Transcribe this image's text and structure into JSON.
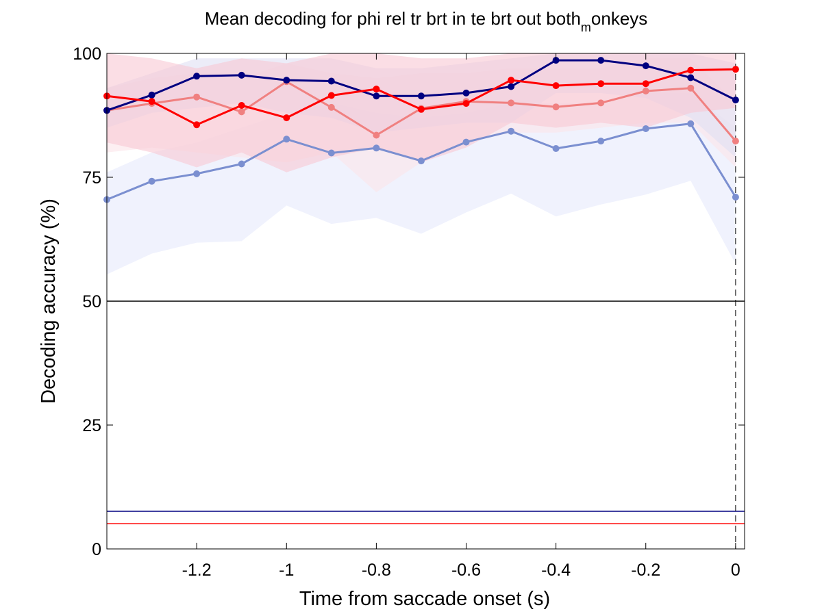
{
  "chart_data": {
    "type": "line",
    "title": "Mean decoding for phi rel tr brt in te brt out  both",
    "title_subscript": "m",
    "title_suffix": "onkeys",
    "xlabel": "Time from saccade onset (s)",
    "ylabel": "Decoding accuracy (%)",
    "xlim": [
      -1.4,
      0.02
    ],
    "ylim": [
      0,
      100
    ],
    "xticks": [
      -1.2,
      -1,
      -0.8,
      -0.6,
      -0.4,
      -0.2,
      0
    ],
    "xtick_labels": [
      "-1.2",
      "-1",
      "-0.8",
      "-0.6",
      "-0.4",
      "-0.2",
      "0"
    ],
    "yticks": [
      0,
      25,
      50,
      75,
      100
    ],
    "ytick_labels": [
      "0",
      "25",
      "50",
      "75",
      "100"
    ],
    "grid": false,
    "legend": "none",
    "x": [
      -1.4,
      -1.3,
      -1.2,
      -1.1,
      -1.0,
      -0.9,
      -0.8,
      -0.7,
      -0.6,
      -0.5,
      -0.4,
      -0.3,
      -0.2,
      -0.1,
      0.0
    ],
    "series": [
      {
        "color": "#7b8fd0",
        "band_color": "#e6e9fb",
        "values": [
          70.5,
          74.2,
          75.7,
          77.7,
          82.7,
          79.9,
          80.9,
          78.3,
          82.1,
          84.3,
          80.8,
          82.3,
          84.8,
          85.8,
          71.0
        ],
        "lower": [
          55.4,
          59.6,
          61.8,
          62.1,
          69.3,
          65.6,
          66.8,
          63.6,
          67.9,
          71.7,
          67.1,
          69.5,
          71.5,
          74.3,
          57.5
        ],
        "upper": [
          76.0,
          80.0,
          82.0,
          85.0,
          88.0,
          90.0,
          88.0,
          87.0,
          88.0,
          90.0,
          90.0,
          90.0,
          92.0,
          92.0,
          85.0
        ]
      },
      {
        "color": "#f08080",
        "band_color": "#fbe4ea",
        "values": [
          88.5,
          89.9,
          91.2,
          88.2,
          94.3,
          89.1,
          83.5,
          88.9,
          90.3,
          90.0,
          89.2,
          90.0,
          92.4,
          93.0,
          82.3
        ],
        "lower": [
          80.0,
          81.0,
          80.0,
          79.0,
          78.0,
          80.0,
          72.0,
          78.0,
          82.0,
          84.0,
          84.0,
          85.0,
          86.0,
          86.0,
          77.0
        ],
        "upper": [
          93.0,
          95.0,
          96.0,
          95.0,
          98.0,
          96.0,
          95.0,
          96.0,
          96.0,
          97.0,
          97.0,
          97.0,
          99.0,
          99.0,
          90.0
        ]
      },
      {
        "color": "#000080",
        "band_color": "#dfe0f3",
        "values": [
          88.5,
          91.6,
          95.4,
          95.6,
          94.6,
          94.4,
          91.4,
          91.4,
          92.0,
          93.3,
          98.6,
          98.6,
          97.5,
          95.1,
          90.6
        ],
        "lower": [
          85.0,
          88.0,
          89.0,
          90.0,
          88.0,
          87.0,
          84.0,
          85.0,
          86.0,
          86.0,
          92.0,
          92.0,
          91.0,
          87.0,
          79.0
        ],
        "upper": [
          93.0,
          96.0,
          99.0,
          99.0,
          99.0,
          99.0,
          97.0,
          97.0,
          98.0,
          99.0,
          100.0,
          100.0,
          100.0,
          100.0,
          98.0
        ]
      },
      {
        "color": "#ff0000",
        "band_color": "#f9c8d4",
        "values": [
          91.4,
          90.3,
          85.6,
          89.5,
          87.0,
          91.5,
          92.8,
          88.7,
          89.9,
          94.6,
          93.5,
          93.9,
          93.9,
          96.6,
          96.8
        ],
        "lower": [
          82.0,
          80.0,
          77.0,
          80.0,
          76.0,
          79.0,
          81.0,
          78.0,
          81.0,
          86.0,
          85.0,
          86.0,
          85.0,
          88.0,
          89.0
        ],
        "upper": [
          100.0,
          99.0,
          97.0,
          99.0,
          98.0,
          100.0,
          100.0,
          99.0,
          99.0,
          100.0,
          100.0,
          100.0,
          100.0,
          100.0,
          100.0
        ]
      }
    ],
    "reference_lines": [
      {
        "axis": "y",
        "value": 50,
        "color": "#000000",
        "style": "solid"
      },
      {
        "axis": "y",
        "value": 7.6,
        "color": "#000080",
        "style": "solid"
      },
      {
        "axis": "y",
        "value": 5.1,
        "color": "#ff0000",
        "style": "solid"
      },
      {
        "axis": "x",
        "value": 0,
        "color": "#000000",
        "style": "dashed"
      }
    ]
  }
}
